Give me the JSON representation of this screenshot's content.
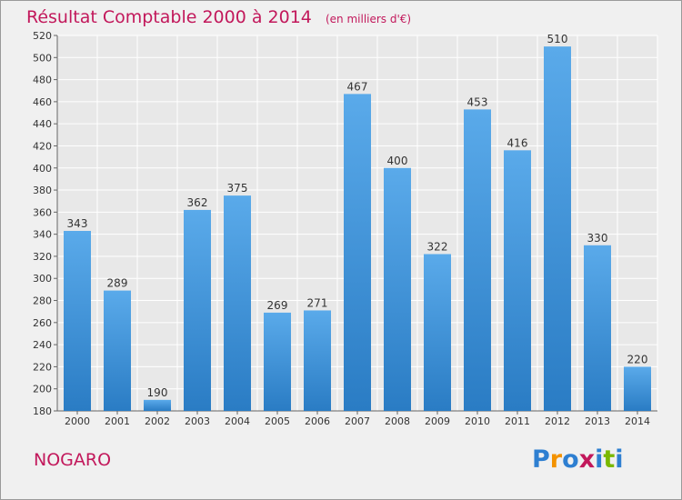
{
  "header": {
    "title": "Résultat Comptable 2000 à 2014",
    "subtitle": "(en milliers d'€)"
  },
  "footer": {
    "place": "NOGARO",
    "logo_text": "Proxiti",
    "logo_colors": [
      "#2e7fd1",
      "#f39200",
      "#2e7fd1",
      "#c2185b",
      "#2e7fd1",
      "#7ab800",
      "#2e7fd1"
    ]
  },
  "colors": {
    "bar_light": "#5aaaea",
    "bar_dark": "#2a7cc4",
    "title": "#c2185b",
    "background": "#f0f0f0",
    "grid": "#ffffff",
    "text": "#333333"
  },
  "chart_data": {
    "type": "bar",
    "title": "Résultat Comptable 2000 à 2014",
    "subtitle": "(en milliers d'€)",
    "categories": [
      "2000",
      "2001",
      "2002",
      "2003",
      "2004",
      "2005",
      "2006",
      "2007",
      "2008",
      "2009",
      "2010",
      "2011",
      "2012",
      "2013",
      "2014"
    ],
    "values": [
      343,
      289,
      190,
      362,
      375,
      269,
      271,
      467,
      400,
      322,
      453,
      416,
      510,
      330,
      220
    ],
    "ylim": [
      180,
      520
    ],
    "yticks": [
      180,
      200,
      220,
      240,
      260,
      280,
      300,
      320,
      340,
      360,
      380,
      400,
      420,
      440,
      460,
      480,
      500,
      520
    ],
    "grid": true,
    "data_labels": true
  }
}
